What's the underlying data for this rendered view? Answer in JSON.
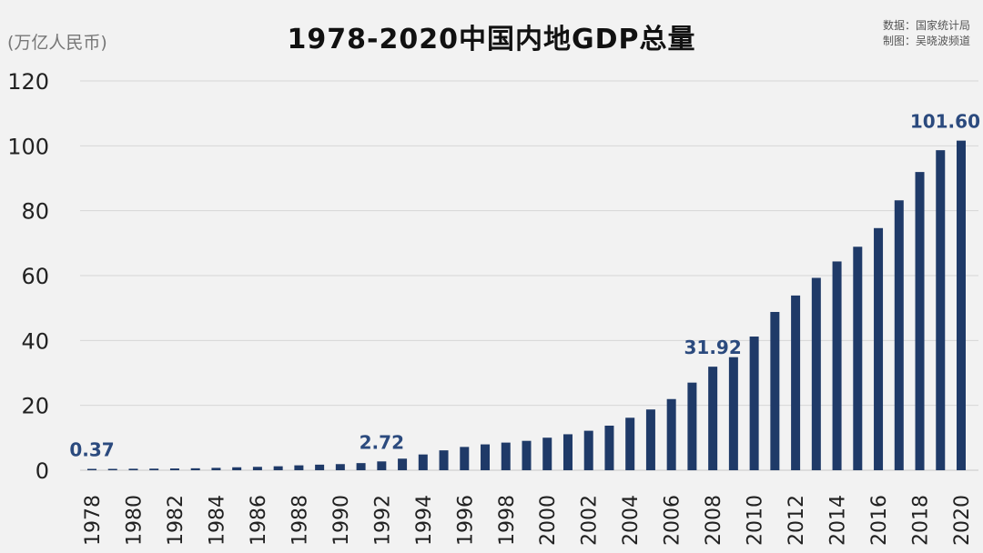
{
  "chart_data": {
    "type": "bar",
    "title": "1978-2020中国内地GDP总量",
    "ylabel": "(万亿人民币)",
    "source_lines": [
      "数据：国家统计局",
      "制图：吴晓波频道"
    ],
    "ylim": [
      0,
      120
    ],
    "yticks": [
      0,
      20,
      40,
      60,
      80,
      100,
      120
    ],
    "grid": true,
    "bar_color": "#1f3a68",
    "label_color": "#2b4a7e",
    "categories": [
      "1978",
      "1979",
      "1980",
      "1981",
      "1982",
      "1983",
      "1984",
      "1985",
      "1986",
      "1987",
      "1988",
      "1989",
      "1990",
      "1991",
      "1992",
      "1993",
      "1994",
      "1995",
      "1996",
      "1997",
      "1998",
      "1999",
      "2000",
      "2001",
      "2002",
      "2003",
      "2004",
      "2005",
      "2006",
      "2007",
      "2008",
      "2009",
      "2010",
      "2011",
      "2012",
      "2013",
      "2014",
      "2015",
      "2016",
      "2017",
      "2018",
      "2019",
      "2020"
    ],
    "values": [
      0.37,
      0.41,
      0.46,
      0.49,
      0.54,
      0.6,
      0.73,
      0.91,
      1.04,
      1.22,
      1.51,
      1.72,
      1.89,
      2.2,
      2.72,
      3.57,
      4.86,
      6.13,
      7.18,
      7.97,
      8.52,
      9.06,
      10.03,
      11.09,
      12.17,
      13.74,
      16.18,
      18.73,
      21.94,
      27.01,
      31.92,
      34.85,
      41.21,
      48.79,
      53.86,
      59.3,
      64.36,
      68.89,
      74.64,
      83.2,
      91.93,
      98.65,
      101.6
    ],
    "xtick_labels": [
      "1978",
      "1980",
      "1982",
      "1984",
      "1986",
      "1988",
      "1990",
      "1992",
      "1994",
      "1996",
      "1998",
      "2000",
      "2002",
      "2004",
      "2006",
      "2008",
      "2010",
      "2012",
      "2014",
      "2016",
      "2018",
      "2020"
    ],
    "annotations": [
      {
        "category": "1978",
        "text": "0.37"
      },
      {
        "category": "1992",
        "text": "2.72"
      },
      {
        "category": "2008",
        "text": "31.92"
      },
      {
        "category": "2020",
        "text": "101.60"
      }
    ]
  }
}
